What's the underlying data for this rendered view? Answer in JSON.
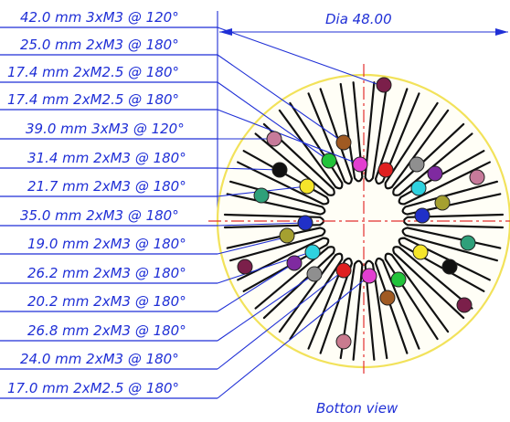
{
  "diameter_label": "Dia 48.00",
  "view_label": "Botton view",
  "specs": [
    "42.0 mm 3xM3 @ 120°",
    "25.0 mm 2xM3 @ 180°",
    "17.4 mm 2xM2.5 @ 180°",
    "17.4 mm 2xM2.5 @ 180°",
    "39.0 mm 3xM3 @ 120°",
    "31.4 mm 2xM3 @ 180°",
    "21.7 mm 2xM3 @ 180°",
    "35.0 mm 2xM3 @ 180°",
    "19.0 mm 2xM3 @ 180°",
    "26.2 mm 2xM3 @ 180°",
    "20.2 mm 2xM3 @ 180°",
    "26.8 mm 2xM3 @ 180°",
    "24.0 mm 2xM3 @ 180°",
    "17.0 mm 2xM2.5 @ 180°"
  ],
  "colors": {
    "annotation": "#1f2fd6",
    "centerline": "#e23030",
    "outline": "#f2e25a",
    "ink": "#111111"
  },
  "hole_colors": [
    "#7b1f4a",
    "#a05a22",
    "#22c33a",
    "#e23fd0",
    "#e02020",
    "#8f8f8f",
    "#7f2aa0",
    "#c77a9a",
    "#111111",
    "#2fa07a",
    "#f5e52a",
    "#2fd2df",
    "#2030c8",
    "#a5a030",
    "#c97b8f",
    "#4a8a5a"
  ]
}
